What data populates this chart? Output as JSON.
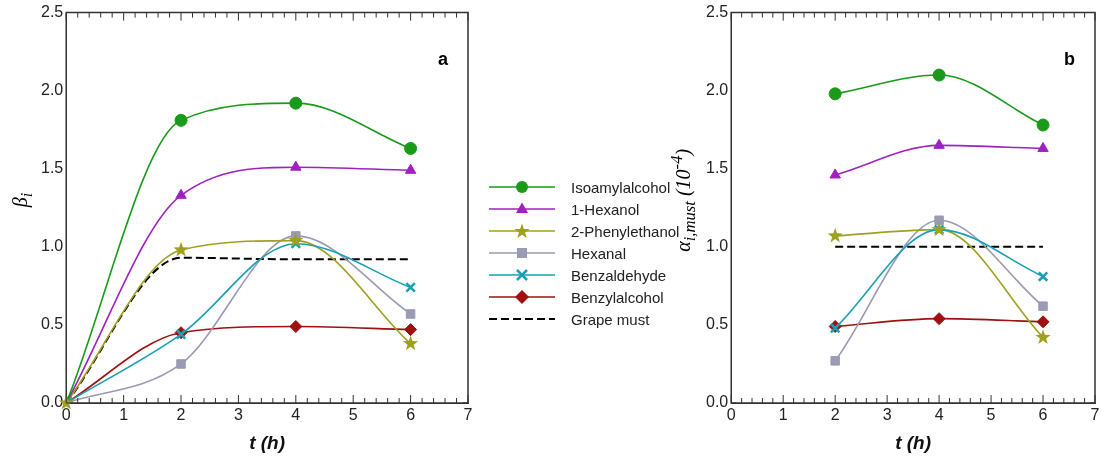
{
  "chart_data": [
    {
      "type": "line",
      "xlabel": "t (h)",
      "ylabel": "β$_{i}$",
      "annotations": [
        "a"
      ],
      "legend": "right",
      "grid": false,
      "x": [
        0,
        2,
        4,
        6
      ],
      "xlim": [
        0,
        7
      ],
      "xticks": [
        0,
        1,
        2,
        3,
        4,
        5,
        6,
        7
      ],
      "ylim": [
        0,
        2.5
      ],
      "yticks": [
        {
          "value": 0,
          "label": "0.0"
        },
        0.5,
        {
          "value": 1,
          "label": "1.0"
        },
        1.5,
        {
          "value": 2,
          "label": "2.0"
        },
        2.5
      ],
      "series": [
        {
          "name": "Isoamylalcohol",
          "color": "#1a9a1a",
          "marker": "circle",
          "values": [
            0,
            1.81,
            1.92,
            1.63
          ]
        },
        {
          "name": "1-Hexanol",
          "color": "#a020c0",
          "marker": "triangle",
          "values": [
            0,
            1.33,
            1.51,
            1.49
          ]
        },
        {
          "name": "2-Phenylethanol",
          "color": "#a0a020",
          "marker": "star",
          "values": [
            0,
            0.98,
            1.04,
            0.38
          ]
        },
        {
          "name": "Hexanal",
          "color": "#9a9ab4",
          "marker": "square",
          "values": [
            0,
            0.25,
            1.07,
            0.57
          ]
        },
        {
          "name": "Benzaldehyde",
          "color": "#1a9fb8",
          "marker": "cross",
          "values": [
            0,
            0.44,
            1.02,
            0.74
          ]
        },
        {
          "name": "Benzylalcohol",
          "color": "#a01010",
          "marker": "diamond",
          "values": [
            0,
            0.45,
            0.49,
            0.47
          ]
        },
        {
          "name": "Grape must",
          "color": "#000000",
          "marker": "none",
          "line_style": "dashed",
          "values": [
            0,
            0.93,
            0.92,
            0.92
          ]
        }
      ]
    },
    {
      "type": "line",
      "xlabel": "t (h)",
      "ylabel": "α$_{i,must}$ (10$^{-4}$)",
      "annotations": [
        "b"
      ],
      "grid": false,
      "x": [
        2,
        4,
        6
      ],
      "xlim": [
        0,
        7
      ],
      "xticks": [
        0,
        1,
        2,
        3,
        4,
        5,
        6,
        7
      ],
      "ylim": [
        0,
        2.5
      ],
      "yticks": [
        {
          "value": 0,
          "label": "0.0"
        },
        0.5,
        {
          "value": 1,
          "label": "1.0"
        },
        1.5,
        {
          "value": 2,
          "label": "2.0"
        },
        2.5
      ],
      "series": [
        {
          "color": "#1a9a1a",
          "marker": "circle",
          "values": [
            1.98,
            2.1,
            1.78
          ]
        },
        {
          "color": "#a020c0",
          "marker": "triangle",
          "values": [
            1.46,
            1.65,
            1.63
          ]
        },
        {
          "color": "#a0a020",
          "marker": "star",
          "values": [
            1.07,
            1.11,
            0.42
          ]
        },
        {
          "color": "#9a9ab4",
          "marker": "square",
          "values": [
            0.27,
            1.17,
            0.62
          ]
        },
        {
          "color": "#1a9fb8",
          "marker": "cross",
          "values": [
            0.48,
            1.11,
            0.81
          ]
        },
        {
          "color": "#a01010",
          "marker": "diamond",
          "values": [
            0.49,
            0.54,
            0.52
          ]
        },
        {
          "color": "#000000",
          "marker": "none",
          "line_style": "dashed",
          "values": [
            1.0,
            1.0,
            1.0
          ]
        }
      ]
    }
  ]
}
